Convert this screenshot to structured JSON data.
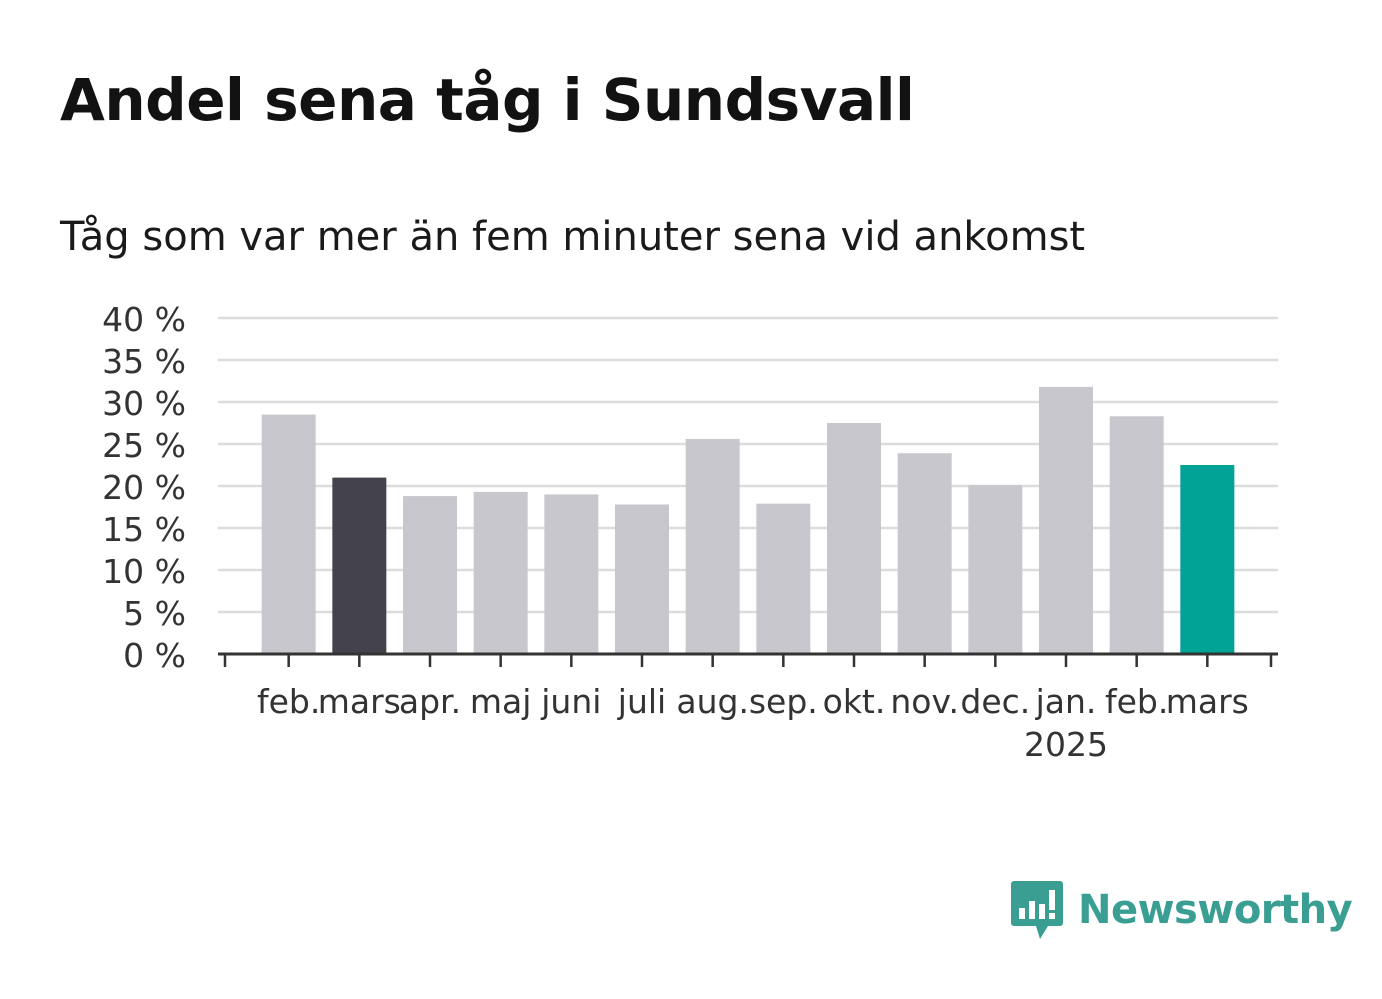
{
  "header": {
    "title": "Andel sena tåg i Sundsvall",
    "subtitle": "Tåg som var mer än fem minuter sena vid ankomst"
  },
  "brand": {
    "name": "Newsworthy",
    "icon": "newsworthy-logo-icon",
    "color": "#3a9e93"
  },
  "colors": {
    "bar_default": "#c8c7cd",
    "bar_previous_year": "#44424d",
    "bar_latest": "#00a396",
    "grid": "#dcdcdc",
    "axis": "#333333"
  },
  "chart_data": {
    "type": "bar",
    "title": "Andel sena tåg i Sundsvall",
    "subtitle": "Tåg som var mer än fem minuter sena vid ankomst",
    "categories": [
      "feb.",
      "mars",
      "apr.",
      "maj",
      "juni",
      "juli",
      "aug.",
      "sep.",
      "okt.",
      "nov.",
      "dec.",
      "jan.",
      "feb.",
      "mars"
    ],
    "year_labels": [
      "",
      "",
      "",
      "",
      "",
      "",
      "",
      "",
      "",
      "",
      "",
      "2025",
      "",
      ""
    ],
    "values": [
      28.5,
      21,
      18.8,
      19.3,
      19,
      17.8,
      25.6,
      17.9,
      27.5,
      23.9,
      20.1,
      31.8,
      28.3,
      22.5
    ],
    "highlight": [
      "default",
      "previous_year",
      "default",
      "default",
      "default",
      "default",
      "default",
      "default",
      "default",
      "default",
      "default",
      "default",
      "default",
      "latest"
    ],
    "ylim": [
      0,
      40
    ],
    "yticks": [
      0,
      5,
      10,
      15,
      20,
      25,
      30,
      35,
      40
    ],
    "ytick_labels": [
      "0 %",
      "5 %",
      "10 %",
      "15 %",
      "20 %",
      "25 %",
      "30 %",
      "35 %",
      "40 %"
    ],
    "xlabel": "",
    "ylabel": "",
    "grid": true,
    "legend": "none"
  }
}
